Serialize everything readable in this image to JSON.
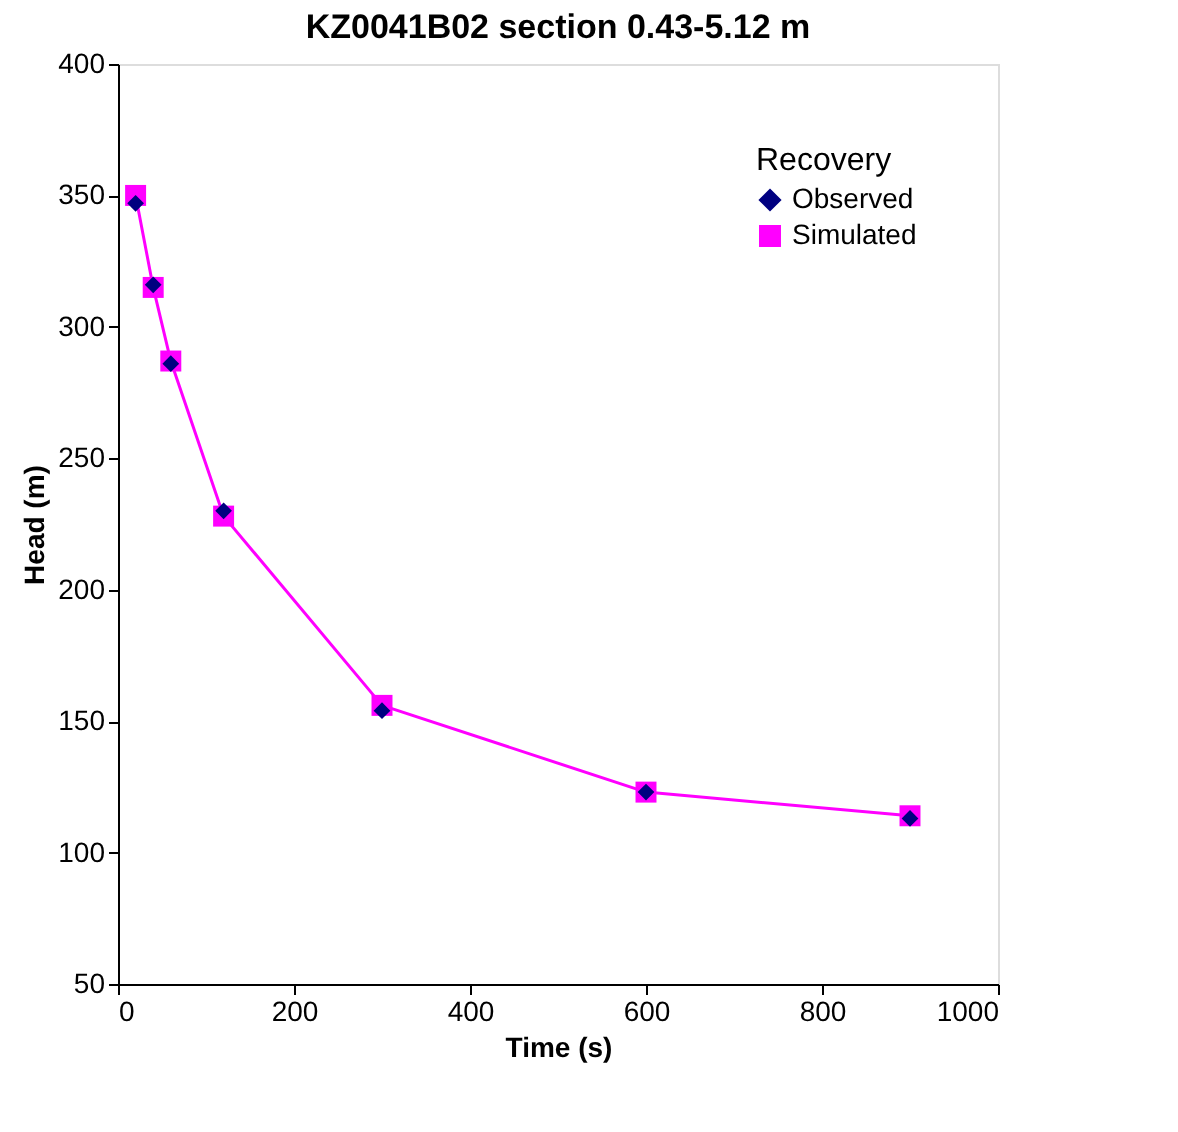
{
  "chart_data": {
    "type": "line",
    "title": "KZ0041B02 section 0.43-5.12 m",
    "xlabel": "Time (s)",
    "ylabel": "Head (m)",
    "legend_title": "Recovery",
    "x": [
      20,
      40,
      60,
      120,
      300,
      600,
      900
    ],
    "series": [
      {
        "name": "Observed",
        "type": "scatter",
        "marker": "diamond",
        "color": "#000080",
        "values": [
          347,
          316,
          286,
          230,
          154,
          123,
          113
        ]
      },
      {
        "name": "Simulated",
        "marker": "square",
        "color": "#ff00ff",
        "values": [
          350,
          315,
          287,
          228,
          156,
          123,
          114
        ]
      }
    ],
    "xlim": [
      0,
      1000
    ],
    "xticks": [
      0,
      200,
      400,
      600,
      800,
      1000
    ],
    "ylim": [
      50,
      400
    ],
    "yticks": [
      50,
      100,
      150,
      200,
      250,
      300,
      350,
      400
    ],
    "grid": false,
    "legend": "top right"
  }
}
